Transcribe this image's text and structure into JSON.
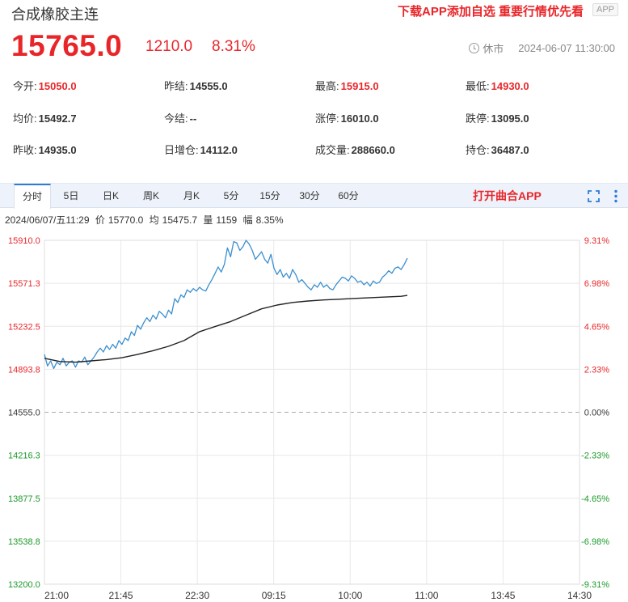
{
  "header": {
    "title": "合成橡胶主连",
    "promo": "下载APP添加自选 重要行情优先看",
    "app_badge": "APP"
  },
  "quote": {
    "price": "15765.0",
    "change": "1210.0",
    "change_pct": "8.31%",
    "status": "休市",
    "datetime": "2024-06-07 11:30:00"
  },
  "stats": [
    [
      {
        "label": "今开:",
        "value": "15050.0",
        "tone": "red"
      },
      {
        "label": "昨结:",
        "value": "14555.0",
        "tone": "dark"
      },
      {
        "label": "最高:",
        "value": "15915.0",
        "tone": "red"
      },
      {
        "label": "最低:",
        "value": "14930.0",
        "tone": "red"
      }
    ],
    [
      {
        "label": "均价:",
        "value": "15492.7",
        "tone": "dark"
      },
      {
        "label": "今结:",
        "value": "--",
        "tone": "dark"
      },
      {
        "label": "涨停:",
        "value": "16010.0",
        "tone": "dark"
      },
      {
        "label": "跌停:",
        "value": "13095.0",
        "tone": "dark"
      }
    ],
    [
      {
        "label": "昨收:",
        "value": "14935.0",
        "tone": "dark"
      },
      {
        "label": "日增仓:",
        "value": "14112.0",
        "tone": "dark"
      },
      {
        "label": "成交量:",
        "value": "288660.0",
        "tone": "dark"
      },
      {
        "label": "持仓:",
        "value": "36487.0",
        "tone": "dark"
      }
    ]
  ],
  "tabs": {
    "items": [
      "分时",
      "5日",
      "日K",
      "周K",
      "月K",
      "5分",
      "15分",
      "30分",
      "60分"
    ],
    "active": 0,
    "open_app": "打开曲合APP"
  },
  "info": {
    "date": "2024/06/07/五11:29",
    "price_label": "价",
    "price": "15770.0",
    "avg_label": "均",
    "avg": "15475.7",
    "vol_label": "量",
    "vol": "1159",
    "amp_label": "幅",
    "amp": "8.35%"
  },
  "colors": {
    "up": "#e8262a",
    "down": "#1a9a2a",
    "price_line": "#3a8fd0",
    "avg_line": "#222222",
    "grid": "#e8e8e8",
    "accent": "#2f7cd6"
  },
  "icons": {
    "status": "clock-icon",
    "fullscreen": "fullscreen-icon",
    "more": "more-vertical-icon"
  },
  "chart_data": {
    "type": "line",
    "x_tick_labels": [
      "21:00",
      "21:45",
      "22:30",
      "09:15",
      "10:00",
      "11:00",
      "13:45",
      "14:30"
    ],
    "y_tick_labels": [
      "15910.0",
      "15571.3",
      "15232.5",
      "14893.8",
      "14555.0",
      "14216.3",
      "13877.5",
      "13538.8",
      "13200.0"
    ],
    "y_right_tick_labels": [
      "9.31%",
      "6.98%",
      "4.65%",
      "2.33%",
      "0.00%",
      "-2.33%",
      "-4.65%",
      "-6.98%",
      "-9.31%"
    ],
    "ylim": [
      13200,
      15910
    ],
    "base": 14555,
    "total_minutes": 345,
    "grid": true,
    "series": [
      {
        "key": "price",
        "points": [
          [
            0,
            15010
          ],
          [
            2,
            14920
          ],
          [
            4,
            14960
          ],
          [
            6,
            14900
          ],
          [
            8,
            14950
          ],
          [
            10,
            14930
          ],
          [
            12,
            14980
          ],
          [
            14,
            14920
          ],
          [
            16,
            14950
          ],
          [
            18,
            14960
          ],
          [
            20,
            14910
          ],
          [
            22,
            14960
          ],
          [
            24,
            14950
          ],
          [
            26,
            14990
          ],
          [
            28,
            14930
          ],
          [
            30,
            14960
          ],
          [
            32,
            14990
          ],
          [
            34,
            15030
          ],
          [
            36,
            15060
          ],
          [
            38,
            15030
          ],
          [
            40,
            15080
          ],
          [
            42,
            15050
          ],
          [
            44,
            15090
          ],
          [
            46,
            15060
          ],
          [
            48,
            15120
          ],
          [
            50,
            15090
          ],
          [
            52,
            15140
          ],
          [
            54,
            15120
          ],
          [
            56,
            15190
          ],
          [
            58,
            15160
          ],
          [
            60,
            15240
          ],
          [
            62,
            15210
          ],
          [
            64,
            15260
          ],
          [
            66,
            15300
          ],
          [
            68,
            15270
          ],
          [
            70,
            15320
          ],
          [
            72,
            15290
          ],
          [
            74,
            15350
          ],
          [
            76,
            15330
          ],
          [
            78,
            15300
          ],
          [
            80,
            15360
          ],
          [
            82,
            15330
          ],
          [
            84,
            15450
          ],
          [
            86,
            15420
          ],
          [
            88,
            15480
          ],
          [
            90,
            15460
          ],
          [
            92,
            15520
          ],
          [
            94,
            15500
          ],
          [
            96,
            15530
          ],
          [
            98,
            15510
          ],
          [
            100,
            15540
          ],
          [
            102,
            15520
          ],
          [
            104,
            15510
          ],
          [
            106,
            15560
          ],
          [
            108,
            15600
          ],
          [
            110,
            15650
          ],
          [
            112,
            15700
          ],
          [
            114,
            15660
          ],
          [
            116,
            15720
          ],
          [
            118,
            15850
          ],
          [
            120,
            15780
          ],
          [
            122,
            15900
          ],
          [
            124,
            15890
          ],
          [
            126,
            15830
          ],
          [
            128,
            15860
          ],
          [
            130,
            15910
          ],
          [
            132,
            15880
          ],
          [
            134,
            15830
          ],
          [
            136,
            15760
          ],
          [
            138,
            15790
          ],
          [
            140,
            15820
          ],
          [
            142,
            15760
          ],
          [
            144,
            15730
          ],
          [
            146,
            15800
          ],
          [
            148,
            15690
          ],
          [
            150,
            15640
          ],
          [
            152,
            15680
          ],
          [
            154,
            15620
          ],
          [
            156,
            15650
          ],
          [
            158,
            15610
          ],
          [
            160,
            15680
          ],
          [
            162,
            15640
          ],
          [
            164,
            15580
          ],
          [
            166,
            15600
          ],
          [
            168,
            15570
          ],
          [
            170,
            15540
          ],
          [
            172,
            15520
          ],
          [
            174,
            15560
          ],
          [
            176,
            15540
          ],
          [
            178,
            15580
          ],
          [
            180,
            15540
          ],
          [
            182,
            15560
          ],
          [
            184,
            15530
          ],
          [
            186,
            15520
          ],
          [
            188,
            15560
          ],
          [
            190,
            15590
          ],
          [
            192,
            15620
          ],
          [
            194,
            15610
          ],
          [
            196,
            15590
          ],
          [
            198,
            15630
          ],
          [
            200,
            15610
          ],
          [
            202,
            15580
          ],
          [
            204,
            15590
          ],
          [
            206,
            15560
          ],
          [
            208,
            15580
          ],
          [
            210,
            15550
          ],
          [
            212,
            15590
          ],
          [
            214,
            15570
          ],
          [
            216,
            15580
          ],
          [
            218,
            15620
          ],
          [
            220,
            15640
          ],
          [
            222,
            15670
          ],
          [
            224,
            15650
          ],
          [
            226,
            15690
          ],
          [
            228,
            15700
          ],
          [
            230,
            15680
          ],
          [
            232,
            15720
          ],
          [
            234,
            15770
          ]
        ]
      },
      {
        "key": "average",
        "points": [
          [
            0,
            14980
          ],
          [
            10,
            14955
          ],
          [
            20,
            14950
          ],
          [
            30,
            14960
          ],
          [
            40,
            14970
          ],
          [
            50,
            14985
          ],
          [
            60,
            15010
          ],
          [
            70,
            15040
          ],
          [
            80,
            15075
          ],
          [
            90,
            15120
          ],
          [
            100,
            15190
          ],
          [
            110,
            15230
          ],
          [
            120,
            15270
          ],
          [
            130,
            15320
          ],
          [
            140,
            15370
          ],
          [
            150,
            15400
          ],
          [
            160,
            15420
          ],
          [
            170,
            15432
          ],
          [
            180,
            15440
          ],
          [
            190,
            15446
          ],
          [
            200,
            15452
          ],
          [
            210,
            15458
          ],
          [
            220,
            15463
          ],
          [
            230,
            15469
          ],
          [
            234,
            15476
          ]
        ]
      }
    ]
  }
}
